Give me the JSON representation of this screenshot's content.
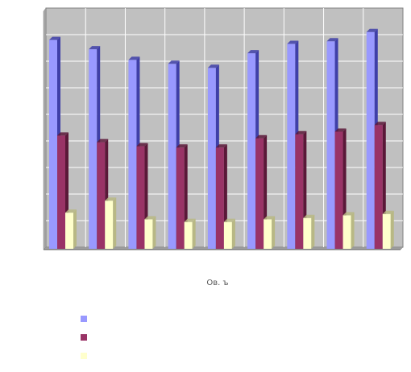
{
  "chart_data": {
    "type": "bar",
    "style": "3d-clustered",
    "categories": [
      "",
      "",
      "",
      "",
      "",
      "",
      "",
      "",
      ""
    ],
    "series": [
      {
        "values": [
          7.8,
          7.45,
          7.05,
          6.9,
          6.75,
          7.3,
          7.65,
          7.75,
          8.1
        ]
      },
      {
        "values": [
          4.2,
          3.95,
          3.8,
          3.75,
          3.75,
          4.1,
          4.25,
          4.35,
          4.6
        ]
      },
      {
        "values": [
          1.3,
          1.75,
          1.05,
          0.95,
          0.95,
          1.05,
          1.1,
          1.2,
          1.25
        ]
      }
    ],
    "ylim": [
      0,
      9
    ],
    "grid": true,
    "legend_placement": "bottom-left",
    "x_axis_caption": "Ов. ъ",
    "colors": {
      "series": [
        "#9999ff",
        "#993366",
        "#ffffcc"
      ],
      "series_dark": [
        "#3f3fa8",
        "#5a1838",
        "#b8b884"
      ],
      "plot_area": "#c0c0c0",
      "plot_wall": "#a8a8a8",
      "gridline": "#ffffff"
    }
  }
}
